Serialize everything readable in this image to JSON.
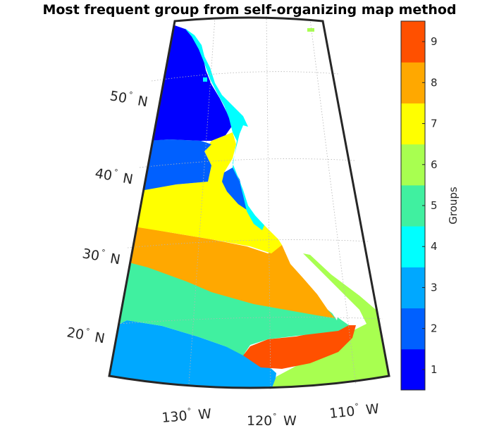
{
  "title": "Most frequent group from self-organizing map method",
  "map": {
    "lat_labels": [
      {
        "num": "50",
        "deg": "°",
        "hem": "N"
      },
      {
        "num": "40",
        "deg": "°",
        "hem": "N"
      },
      {
        "num": "30",
        "deg": "°",
        "hem": "N"
      },
      {
        "num": "20",
        "deg": "°",
        "hem": "N"
      }
    ],
    "lon_labels": [
      {
        "num": "130",
        "deg": "°",
        "hem": "W"
      },
      {
        "num": "120",
        "deg": "°",
        "hem": "W"
      },
      {
        "num": "110",
        "deg": "°",
        "hem": "W"
      }
    ],
    "gridlines": true,
    "frame_color": "#262626"
  },
  "colorbar": {
    "label": "Groups",
    "ticks": [
      "1",
      "2",
      "3",
      "4",
      "5",
      "6",
      "7",
      "8",
      "9"
    ],
    "colors": [
      "#0000FF",
      "#0060FF",
      "#00A8FF",
      "#00FFFF",
      "#40F0A0",
      "#A8FF50",
      "#FFFF00",
      "#FFA800",
      "#FF5000"
    ]
  },
  "chart_data": {
    "type": "heatmap",
    "title": "Most frequent group from self-organizing map method",
    "colorbar_label": "Groups",
    "colorbar_range": [
      0.5,
      9.5
    ],
    "colorbar_ticks": [
      1,
      2,
      3,
      4,
      5,
      6,
      7,
      8,
      9
    ],
    "lat_ticks_deg_N": [
      50,
      40,
      30,
      20
    ],
    "lon_ticks_deg_W": [
      130,
      120,
      110
    ],
    "regions": [
      {
        "group": 1,
        "area": "north, approx. 45-56 N along the coast"
      },
      {
        "group": 2,
        "area": "approx. 42-47 N"
      },
      {
        "group": 3,
        "area": "southwest, approx. 15-21 N"
      },
      {
        "group": 4,
        "area": "narrow coastal strip"
      },
      {
        "group": 5,
        "area": "approx. 20-28 N"
      },
      {
        "group": 6,
        "area": "southeast, near 110-115 W"
      },
      {
        "group": 7,
        "area": "approx. 33-42 N"
      },
      {
        "group": 8,
        "area": "approx. 27-33 N"
      },
      {
        "group": 9,
        "area": "approx. 18-22 N near 115-120 W"
      }
    ]
  }
}
